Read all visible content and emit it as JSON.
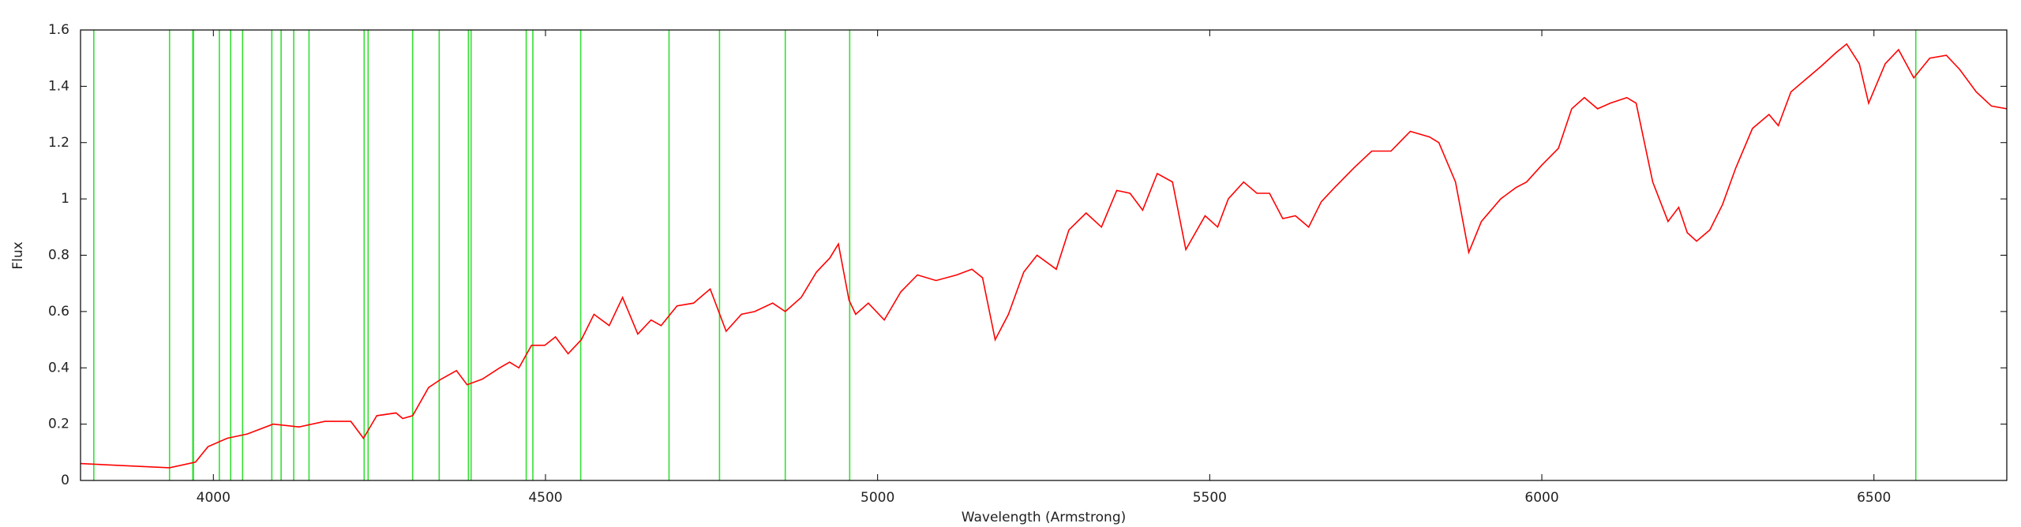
{
  "chart_data": {
    "type": "line",
    "x_label": "Wavelength (Armstrong)",
    "y_label": "Flux",
    "x": [
      3800,
      3934,
      3973,
      3992,
      4021,
      4051,
      4090,
      4129,
      4168,
      4207,
      4226,
      4246,
      4275,
      4285,
      4300,
      4324,
      4343,
      4366,
      4382,
      4405,
      4431,
      4446,
      4460,
      4479,
      4499,
      4515,
      4534,
      4554,
      4573,
      4596,
      4616,
      4639,
      4659,
      4674,
      4698,
      4723,
      4748,
      4772,
      4795,
      4815,
      4842,
      4861,
      4885,
      4908,
      4928,
      4941,
      4957,
      4967,
      4986,
      5010,
      5035,
      5060,
      5088,
      5119,
      5142,
      5158,
      5177,
      5197,
      5220,
      5240,
      5269,
      5288,
      5314,
      5337,
      5360,
      5380,
      5399,
      5421,
      5444,
      5464,
      5493,
      5512,
      5528,
      5551,
      5571,
      5590,
      5610,
      5629,
      5649,
      5668,
      5688,
      5717,
      5744,
      5773,
      5802,
      5831,
      5845,
      5870,
      5890,
      5909,
      5938,
      5961,
      5977,
      6000,
      6025,
      6045,
      6064,
      6084,
      6103,
      6128,
      6142,
      6167,
      6190,
      6206,
      6219,
      6233,
      6253,
      6272,
      6292,
      6317,
      6342,
      6356,
      6375,
      6395,
      6420,
      6443,
      6459,
      6478,
      6492,
      6517,
      6537,
      6560,
      6584,
      6609,
      6629,
      6654,
      6677,
      6700
    ],
    "series": [
      {
        "color": "#ff0000",
        "values": [
          0.06,
          0.045,
          0.065,
          0.12,
          0.15,
          0.165,
          0.2,
          0.19,
          0.21,
          0.21,
          0.15,
          0.23,
          0.24,
          0.22,
          0.23,
          0.33,
          0.36,
          0.39,
          0.34,
          0.36,
          0.4,
          0.42,
          0.4,
          0.48,
          0.48,
          0.51,
          0.45,
          0.5,
          0.59,
          0.55,
          0.65,
          0.52,
          0.57,
          0.55,
          0.62,
          0.63,
          0.68,
          0.53,
          0.59,
          0.6,
          0.63,
          0.6,
          0.65,
          0.74,
          0.79,
          0.84,
          0.64,
          0.59,
          0.63,
          0.57,
          0.67,
          0.73,
          0.71,
          0.73,
          0.75,
          0.72,
          0.5,
          0.59,
          0.74,
          0.8,
          0.75,
          0.89,
          0.95,
          0.9,
          1.03,
          1.02,
          0.96,
          1.09,
          1.06,
          0.82,
          0.94,
          0.9,
          1.0,
          1.06,
          1.02,
          1.02,
          0.93,
          0.94,
          0.9,
          0.99,
          1.04,
          1.11,
          1.17,
          1.17,
          1.24,
          1.22,
          1.2,
          1.06,
          0.81,
          0.92,
          1.0,
          1.04,
          1.06,
          1.12,
          1.18,
          1.32,
          1.36,
          1.32,
          1.34,
          1.36,
          1.34,
          1.06,
          0.92,
          0.97,
          0.88,
          0.85,
          0.89,
          0.98,
          1.11,
          1.25,
          1.3,
          1.26,
          1.38,
          1.42,
          1.47,
          1.52,
          1.55,
          1.48,
          1.34,
          1.48,
          1.53,
          1.43,
          1.5,
          1.51,
          1.46,
          1.38,
          1.33,
          1.32
        ]
      }
    ],
    "vlines": {
      "color": "#33e033",
      "x": [
        3820,
        3934,
        3969,
        3970,
        4009,
        4026,
        4044,
        4088,
        4102,
        4121,
        4144,
        4227,
        4233,
        4300,
        4340,
        4384,
        4388,
        4471,
        4481,
        4553,
        4686,
        4762,
        4861,
        4958,
        6563
      ]
    },
    "xlim": [
      3800,
      6700
    ],
    "xticks": [
      4000,
      4500,
      5000,
      5500,
      6000,
      6500
    ],
    "ylim": [
      0,
      1.6
    ],
    "yticks": [
      0,
      0.2,
      0.4,
      0.6,
      0.8,
      1,
      1.2,
      1.4,
      1.6
    ]
  }
}
